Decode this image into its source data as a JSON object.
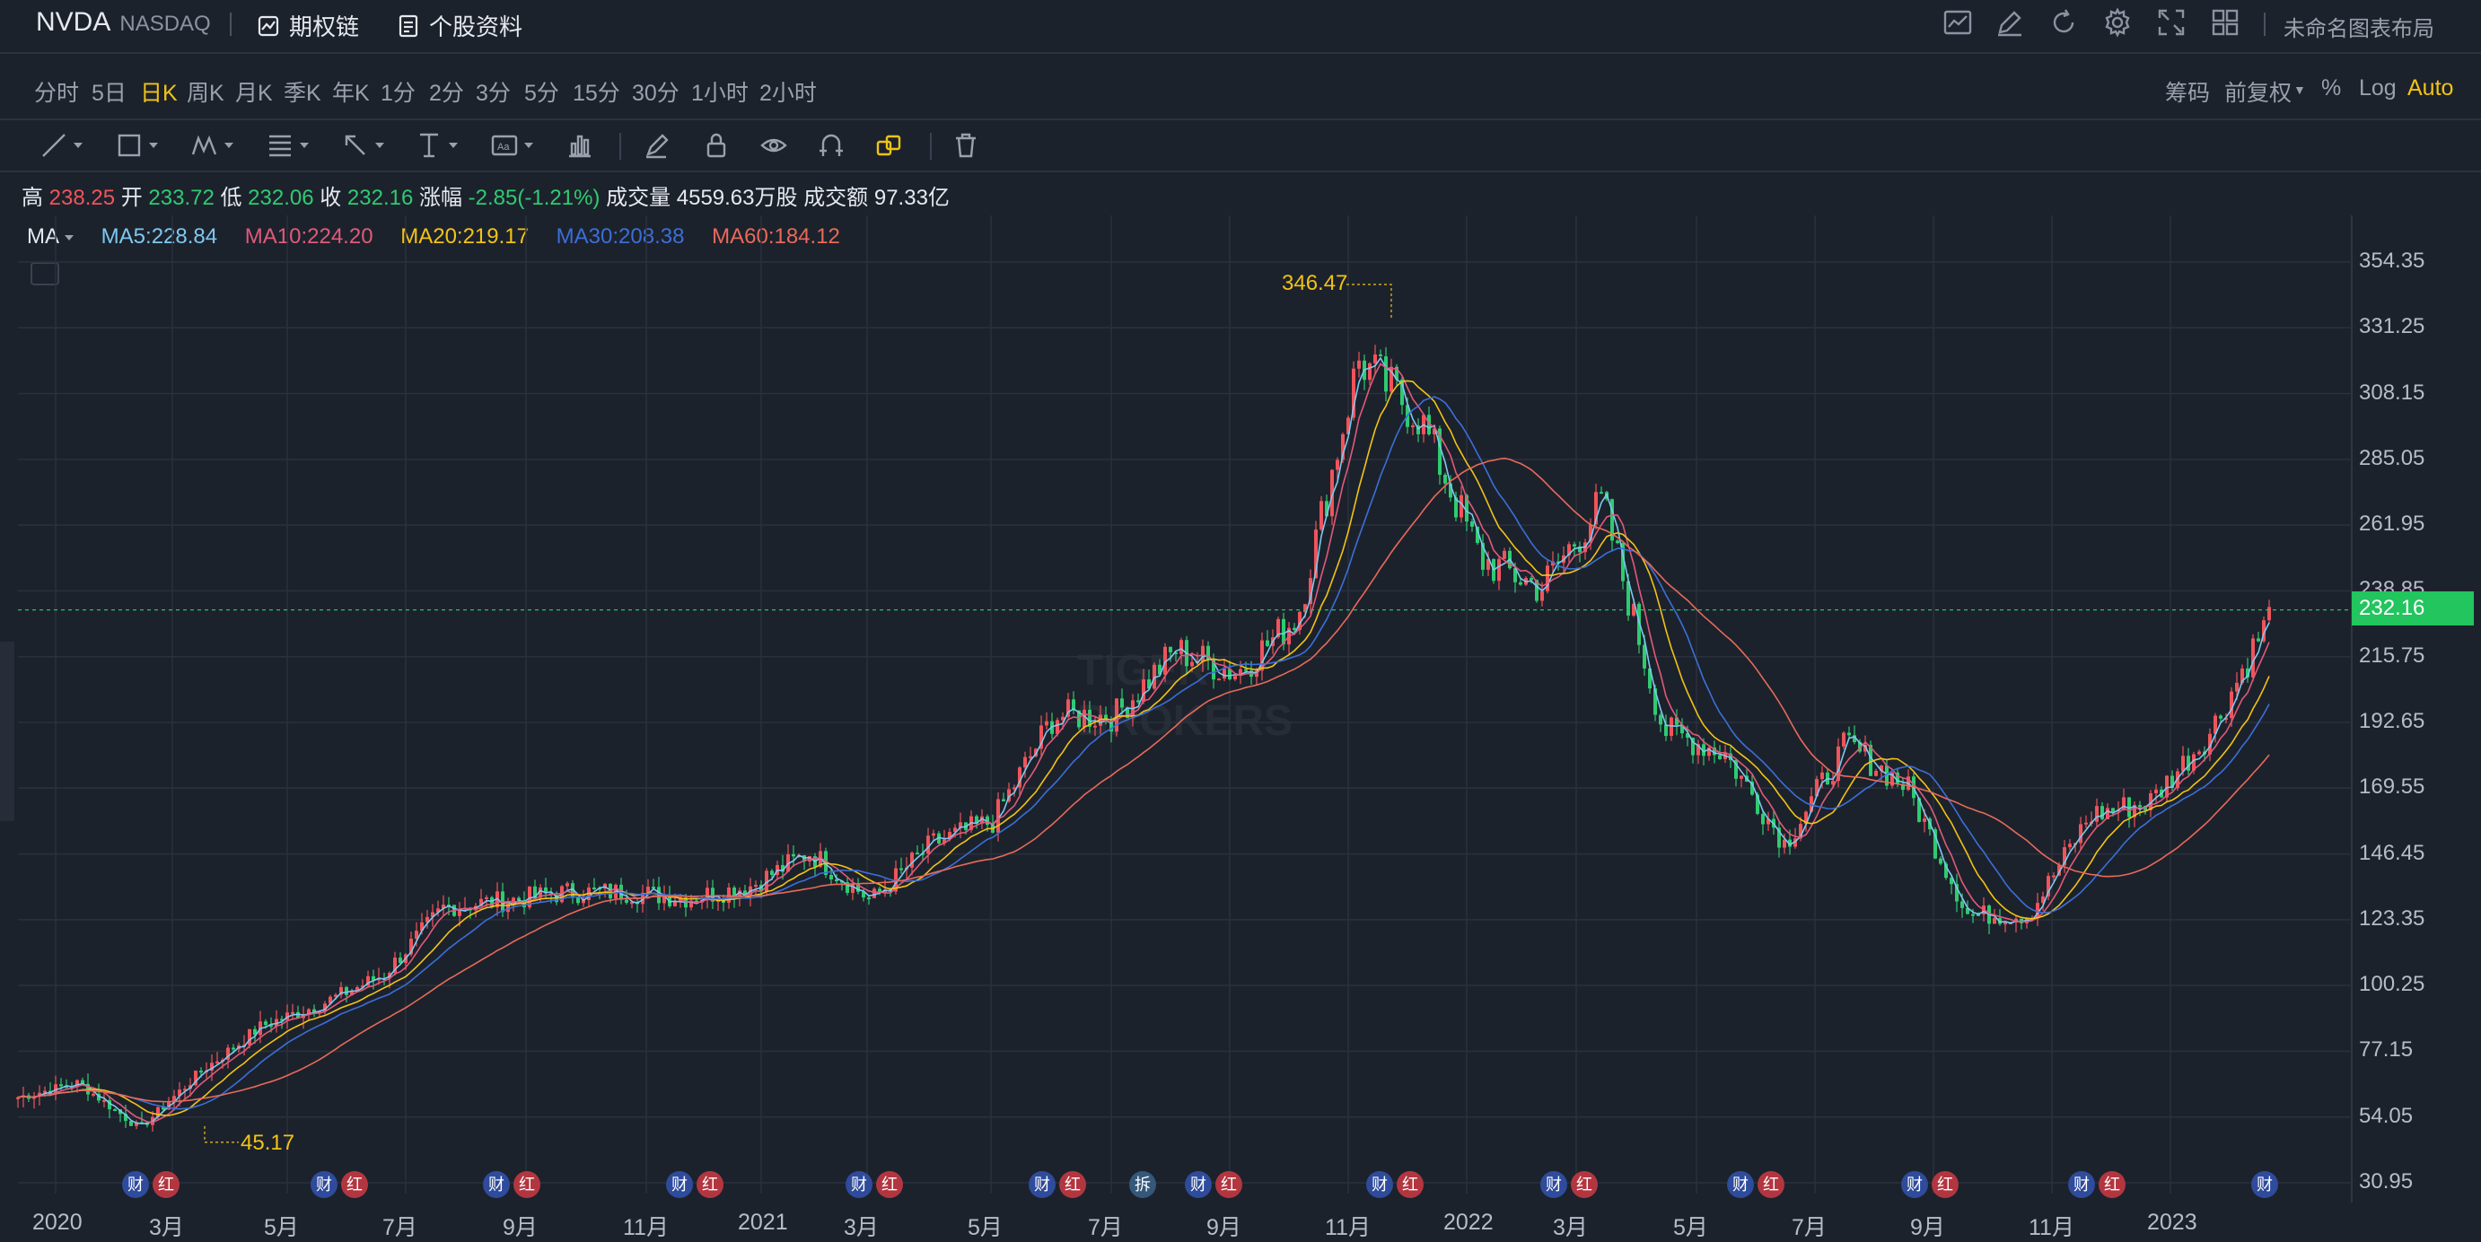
{
  "header": {
    "ticker": "NVDA",
    "exchange": "NASDAQ",
    "links": [
      {
        "label": "期权链",
        "icon": "chart-icon"
      },
      {
        "label": "个股资料",
        "icon": "document-icon"
      }
    ],
    "layout_name": "未命名图表布局"
  },
  "periods": [
    "分时",
    "5日",
    "日K",
    "周K",
    "月K",
    "季K",
    "年K",
    "1分",
    "2分",
    "3分",
    "5分",
    "15分",
    "30分",
    "1小时",
    "2小时"
  ],
  "active_period": "日K",
  "right_options": {
    "chips": "筹码",
    "adjust": "前复权",
    "percent": "%",
    "log": "Log",
    "auto": "Auto"
  },
  "ohlc": {
    "high_label": "高",
    "high": "238.25",
    "open_label": "开",
    "open": "233.72",
    "low_label": "低",
    "low": "232.06",
    "close_label": "收",
    "close": "232.16",
    "change_label": "涨幅",
    "change": "-2.85(-1.21%)",
    "volume_label": "成交量",
    "volume": "4559.63万股",
    "turnover_label": "成交额",
    "turnover": "97.33亿"
  },
  "ma_legend": {
    "label": "MA",
    "ma5": "MA5:228.84",
    "ma10": "MA10:224.20",
    "ma20": "MA20:219.17",
    "ma30": "MA30:208.38",
    "ma60": "MA60:184.12"
  },
  "colors": {
    "up": "#f0545b",
    "down": "#2fcb71",
    "ma5": "#7ec8f0",
    "ma10": "#e05a7a",
    "ma20": "#f2c316",
    "ma30": "#3b6fd8",
    "ma60": "#e86a5a",
    "accent": "#f2c316",
    "current_price": "#22c55e"
  },
  "y_axis_labels": [
    "354.35",
    "331.25",
    "308.15",
    "285.05",
    "261.95",
    "238.85",
    "215.75",
    "192.65",
    "169.55",
    "146.45",
    "123.35",
    "100.25",
    "77.15",
    "54.05",
    "30.95"
  ],
  "current_price_tag": "232.16",
  "high_marker": "346.47",
  "low_marker": "45.17",
  "watermark": [
    "TIGER",
    "BROKERS"
  ],
  "x_axis_labels": [
    "2020",
    "3月",
    "5月",
    "7月",
    "9月",
    "11月",
    "2021",
    "3月",
    "5月",
    "7月",
    "9月",
    "11月",
    "2022",
    "3月",
    "5月",
    "7月",
    "9月",
    "11月",
    "2023"
  ],
  "event_badges": [
    {
      "label": "财",
      "type": "cai"
    },
    {
      "label": "红",
      "type": "hong"
    },
    {
      "label": "财",
      "type": "cai"
    },
    {
      "label": "红",
      "type": "hong"
    },
    {
      "label": "财",
      "type": "cai"
    },
    {
      "label": "红",
      "type": "hong"
    },
    {
      "label": "财",
      "type": "cai"
    },
    {
      "label": "红",
      "type": "hong"
    },
    {
      "label": "财",
      "type": "cai"
    },
    {
      "label": "红",
      "type": "hong"
    },
    {
      "label": "财",
      "type": "cai"
    },
    {
      "label": "红",
      "type": "hong"
    },
    {
      "label": "拆",
      "type": "chai"
    },
    {
      "label": "财",
      "type": "cai"
    },
    {
      "label": "红",
      "type": "hong"
    },
    {
      "label": "财",
      "type": "cai"
    },
    {
      "label": "红",
      "type": "hong"
    },
    {
      "label": "财",
      "type": "cai"
    },
    {
      "label": "红",
      "type": "hong"
    },
    {
      "label": "财",
      "type": "cai"
    },
    {
      "label": "红",
      "type": "hong"
    },
    {
      "label": "财",
      "type": "cai"
    },
    {
      "label": "红",
      "type": "hong"
    },
    {
      "label": "财",
      "type": "cai"
    },
    {
      "label": "红",
      "type": "hong"
    },
    {
      "label": "财",
      "type": "cai"
    }
  ],
  "chart_data": {
    "type": "line",
    "title": "",
    "x": [
      "2020-01",
      "2020-02",
      "2020-03",
      "2020-04",
      "2020-05",
      "2020-06",
      "2020-07",
      "2020-08",
      "2020-09",
      "2020-10",
      "2020-11",
      "2020-12",
      "2021-01",
      "2021-02",
      "2021-03",
      "2021-04",
      "2021-05",
      "2021-06",
      "2021-07",
      "2021-08",
      "2021-09",
      "2021-10",
      "2021-11",
      "2021-12",
      "2022-01",
      "2022-02",
      "2022-03",
      "2022-04",
      "2022-05",
      "2022-06",
      "2022-07",
      "2022-08",
      "2022-09",
      "2022-10",
      "2022-11",
      "2022-12",
      "2023-01",
      "2023-02"
    ],
    "series": [
      {
        "name": "",
        "values": [
          61,
          66,
          50,
          70,
          86,
          94,
          104,
          128,
          130,
          133,
          133,
          131,
          135,
          147,
          130,
          150,
          158,
          195,
          195,
          218,
          210,
          230,
          320,
          300,
          250,
          240,
          270,
          190,
          182,
          150,
          185,
          170,
          125,
          125,
          160,
          165,
          190,
          232
        ]
      }
    ],
    "ylim": [
      30.95,
      354.35
    ],
    "y_ticks": [
      354.35,
      331.25,
      308.15,
      285.05,
      261.95,
      238.85,
      215.75,
      192.65,
      169.55,
      146.45,
      123.35,
      100.25,
      77.15,
      54.05,
      30.95
    ]
  }
}
